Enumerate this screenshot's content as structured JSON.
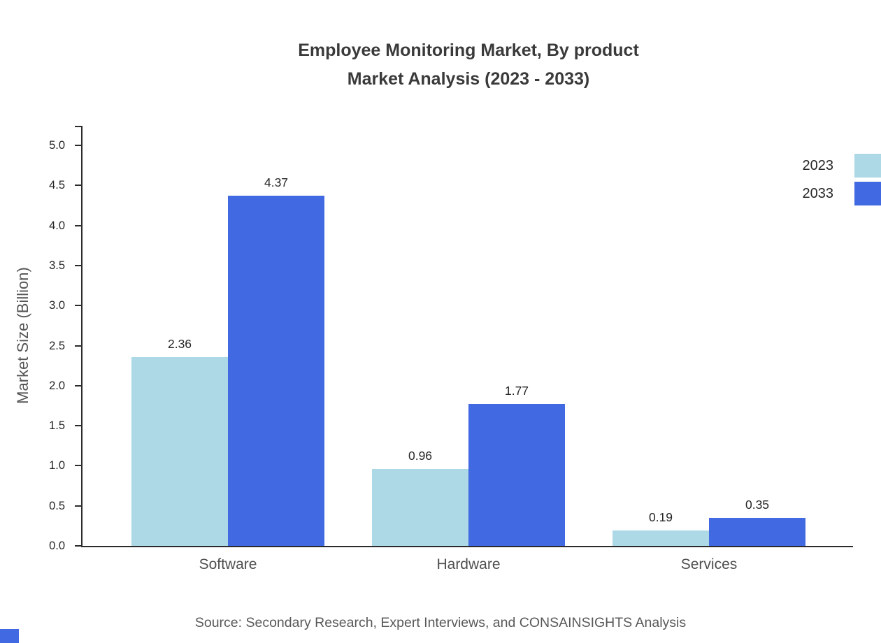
{
  "title": {
    "line1": "Employee Monitoring Market, By product",
    "line2": "Market Analysis (2023 - 2033)"
  },
  "source": "Source: Secondary Research, Expert Interviews, and CONSAINSIGHTS Analysis",
  "colors": {
    "series_2023": "#ADD8E6",
    "series_2033": "#4169E1",
    "axis": "#2B2B2B",
    "title_text": "#3A3A3A",
    "corner_accent": "#4169E1"
  },
  "chart_data": {
    "type": "bar",
    "categories": [
      "Software",
      "Hardware",
      "Services"
    ],
    "series": [
      {
        "name": "2023",
        "color": "#ADD8E6",
        "values": [
          2.36,
          0.96,
          0.19
        ]
      },
      {
        "name": "2033",
        "color": "#4169E1",
        "values": [
          4.37,
          1.77,
          0.35
        ]
      }
    ],
    "title": "Employee Monitoring Market, By product\nMarket Analysis (2023 - 2033)",
    "xlabel": "",
    "ylabel": "Market Size (Billion)",
    "ylim": [
      0,
      5.0
    ],
    "ytick_step": 0.5,
    "grid": false,
    "legend_position": "top-right",
    "value_label_decimals": 2,
    "tick_label_decimals": 1
  }
}
